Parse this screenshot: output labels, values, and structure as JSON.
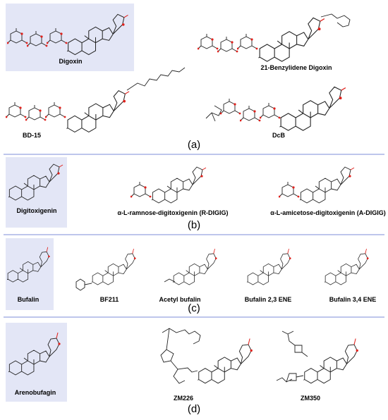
{
  "panels": [
    {
      "label": "(a)",
      "compounds": [
        "Digoxin",
        "21-Benzylidene Digoxin",
        "BD-15",
        "DcB"
      ]
    },
    {
      "label": "(b)",
      "compounds": [
        "Digitoxigenin",
        "α-L-ramnose-digitoxigenin (R-DIGIG)",
        "α-L-amicetose-digitoxigenin (A-DIGIG)"
      ]
    },
    {
      "label": "(c)",
      "compounds": [
        "Bufalin",
        "BF211",
        "Acetyl bufalin",
        "Bufalin 2,3 ENE",
        "Bufalin 3,4 ENE"
      ]
    },
    {
      "label": "(d)",
      "compounds": [
        "Arenobufagin",
        "ZM226",
        "ZM350"
      ]
    }
  ]
}
